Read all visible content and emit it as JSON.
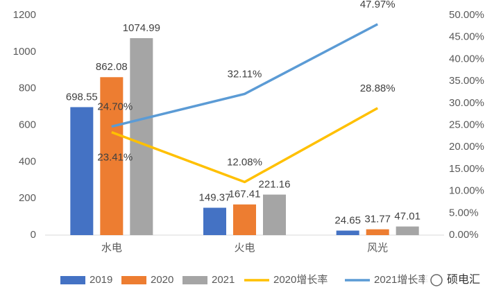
{
  "chart_data": {
    "type": "bar-line",
    "categories": [
      "水电",
      "火电",
      "风光"
    ],
    "series": [
      {
        "name": "2019",
        "type": "bar",
        "color": "#4472c4",
        "values": [
          698.55,
          149.37,
          24.65
        ]
      },
      {
        "name": "2020",
        "type": "bar",
        "color": "#ed7d31",
        "values": [
          862.08,
          167.41,
          31.77
        ]
      },
      {
        "name": "2021",
        "type": "bar",
        "color": "#a5a5a5",
        "values": [
          1074.99,
          221.16,
          47.01
        ]
      },
      {
        "name": "2020增长率",
        "type": "line",
        "axis": "y2",
        "color": "#ffc000",
        "values": [
          23.41,
          12.08,
          28.88
        ],
        "value_labels": [
          "23.41%",
          "12.08%",
          "28.88%"
        ]
      },
      {
        "name": "2021增长率",
        "type": "line",
        "axis": "y2",
        "color": "#5b9bd5",
        "values": [
          24.7,
          32.11,
          47.97
        ],
        "value_labels": [
          "24.70%",
          "32.11%",
          "47.97%"
        ]
      }
    ],
    "ylim": [
      0,
      1200
    ],
    "yticks": [
      0,
      200,
      400,
      600,
      800,
      1000,
      1200
    ],
    "y2lim": [
      0,
      50
    ],
    "y2ticks": [
      {
        "value": 0,
        "label": "0.00%"
      },
      {
        "value": 5,
        "label": "5.00%"
      },
      {
        "value": 10,
        "label": "10.00%"
      },
      {
        "value": 15,
        "label": "15.00%"
      },
      {
        "value": 20,
        "label": "20.00%"
      },
      {
        "value": 25,
        "label": "25.00%"
      },
      {
        "value": 30,
        "label": "30.00%"
      },
      {
        "value": 35,
        "label": "35.00%"
      },
      {
        "value": 40,
        "label": "40.00%"
      },
      {
        "value": 45,
        "label": "45.00%"
      },
      {
        "value": 50,
        "label": "50.00%"
      }
    ],
    "grid": false,
    "legend": "bottom"
  },
  "watermark": "硕电汇"
}
